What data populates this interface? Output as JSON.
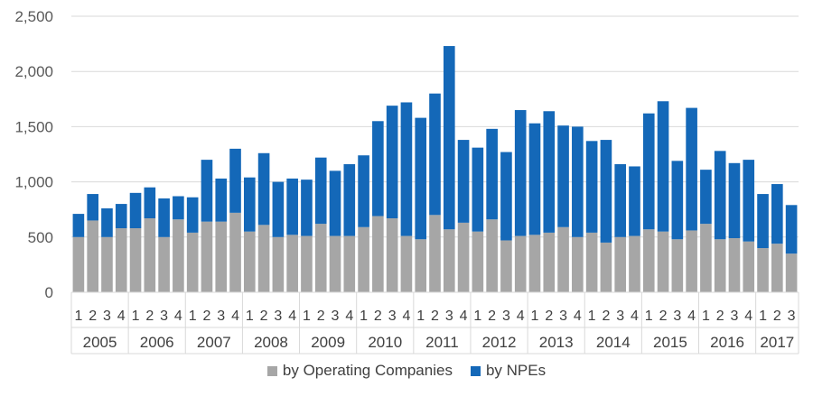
{
  "chart_data": {
    "type": "bar",
    "stacked": true,
    "ylim": [
      0,
      2500
    ],
    "y_ticks": [
      "0",
      "500",
      "1,000",
      "1,500",
      "2,000",
      "2,500"
    ],
    "grid": "horizontal",
    "legend_position": "bottom",
    "years": [
      {
        "label": "2005",
        "quarters": [
          "1",
          "2",
          "3",
          "4"
        ]
      },
      {
        "label": "2006",
        "quarters": [
          "1",
          "2",
          "3",
          "4"
        ]
      },
      {
        "label": "2007",
        "quarters": [
          "1",
          "2",
          "3",
          "4"
        ]
      },
      {
        "label": "2008",
        "quarters": [
          "1",
          "2",
          "3",
          "4"
        ]
      },
      {
        "label": "2009",
        "quarters": [
          "1",
          "2",
          "3",
          "4"
        ]
      },
      {
        "label": "2010",
        "quarters": [
          "1",
          "2",
          "3",
          "4"
        ]
      },
      {
        "label": "2011",
        "quarters": [
          "1",
          "2",
          "3",
          "4"
        ]
      },
      {
        "label": "2012",
        "quarters": [
          "1",
          "2",
          "3",
          "4"
        ]
      },
      {
        "label": "2013",
        "quarters": [
          "1",
          "2",
          "3",
          "4"
        ]
      },
      {
        "label": "2014",
        "quarters": [
          "1",
          "2",
          "3",
          "4"
        ]
      },
      {
        "label": "2015",
        "quarters": [
          "1",
          "2",
          "3",
          "4"
        ]
      },
      {
        "label": "2016",
        "quarters": [
          "1",
          "2",
          "3",
          "4"
        ]
      },
      {
        "label": "2017",
        "quarters": [
          "1",
          "2",
          "3"
        ]
      }
    ],
    "series": [
      {
        "name": "by Operating Companies",
        "color": "#a6a6a6",
        "values": [
          500,
          650,
          500,
          580,
          580,
          670,
          500,
          660,
          540,
          640,
          640,
          720,
          550,
          610,
          500,
          520,
          510,
          620,
          510,
          510,
          590,
          690,
          670,
          510,
          480,
          700,
          570,
          630,
          550,
          660,
          470,
          510,
          520,
          540,
          590,
          500,
          540,
          450,
          500,
          510,
          570,
          550,
          480,
          560,
          620,
          480,
          490,
          460,
          400,
          440,
          350
        ]
      },
      {
        "name": "by NPEs",
        "color": "#1468b8",
        "values": [
          210,
          240,
          260,
          220,
          320,
          280,
          350,
          210,
          320,
          560,
          390,
          580,
          490,
          650,
          500,
          510,
          510,
          600,
          590,
          650,
          650,
          860,
          1020,
          1210,
          1100,
          1100,
          1660,
          750,
          760,
          820,
          800,
          1140,
          1010,
          1100,
          920,
          1000,
          830,
          930,
          660,
          630,
          1050,
          1180,
          710,
          1110,
          490,
          800,
          680,
          740,
          490,
          540,
          440
        ]
      }
    ]
  }
}
